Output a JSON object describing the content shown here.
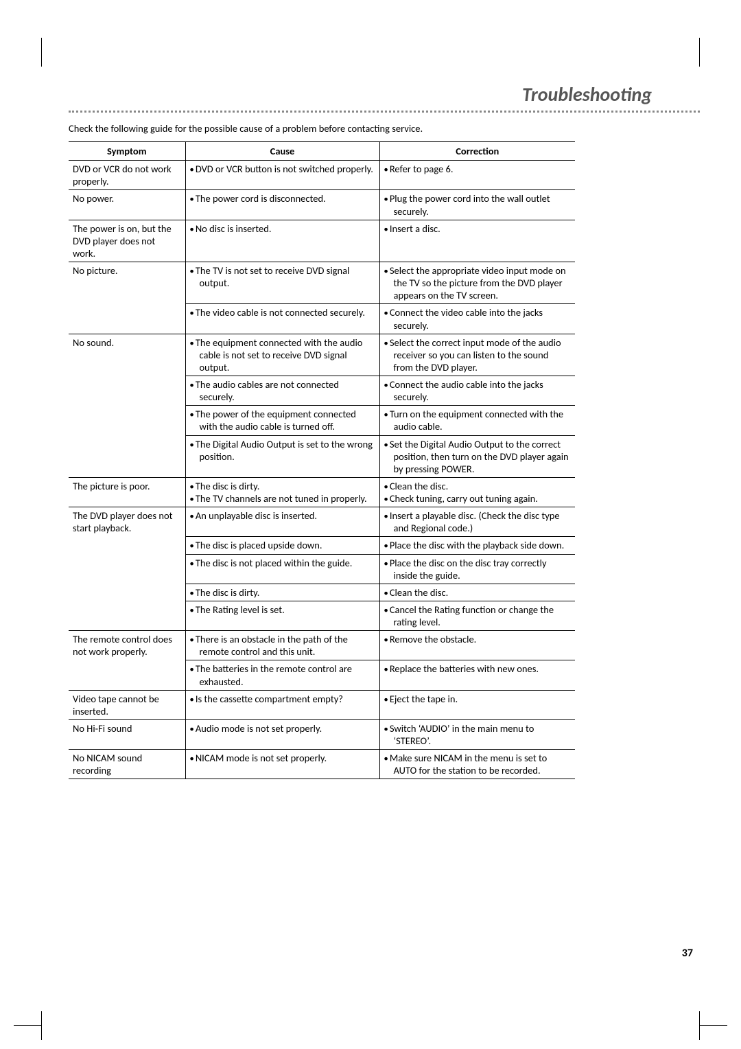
{
  "page": {
    "title": "Troubleshooting",
    "intro": "Check the following guide for the possible cause of a problem before contacting service.",
    "page_number": "37"
  },
  "table": {
    "headers": {
      "symptom": "Symptom",
      "cause": "Cause",
      "correction": "Correction"
    },
    "groups": [
      {
        "symptom": "DVD or VCR do not work properly.",
        "rows": [
          {
            "cause": "DVD or VCR button is not switched properly.",
            "correction": "Refer to page 6."
          }
        ]
      },
      {
        "symptom": "No power.",
        "rows": [
          {
            "cause": "The power cord is disconnected.",
            "correction": "Plug the power cord into the wall outlet securely."
          }
        ]
      },
      {
        "symptom": "The power is on, but the DVD player does not work.",
        "rows": [
          {
            "cause": "No disc is inserted.",
            "correction": "Insert a disc."
          }
        ]
      },
      {
        "symptom": "No picture.",
        "rows": [
          {
            "cause": "The TV is not set to receive DVD signal output.",
            "correction": "Select the appropriate video input mode on the TV so the picture from the DVD player appears on the TV screen."
          },
          {
            "cause": "The video cable is not connected securely.",
            "correction": "Connect the video cable into the jacks securely."
          }
        ]
      },
      {
        "symptom": "No sound.",
        "rows": [
          {
            "cause": "The equipment connected with the audio cable is not set to receive DVD signal output.",
            "correction": "Select the correct input mode of the audio receiver so you can listen to the sound from the DVD player."
          },
          {
            "cause": "The audio cables are not connected securely.",
            "correction": "Connect the audio cable into the jacks securely."
          },
          {
            "cause": "The power of the equipment connected with the audio cable is turned off.",
            "correction": "Turn on the equipment connected with the audio cable."
          },
          {
            "cause": "The Digital Audio Output is set to the wrong position.",
            "correction": "Set the Digital Audio Output to the correct position, then turn on the DVD player again by pressing POWER."
          }
        ]
      },
      {
        "symptom": "The picture is  poor.",
        "rows": [
          {
            "cause_list": [
              "The disc is dirty.",
              "The TV channels are not tuned in properly."
            ],
            "correction_list": [
              "Clean the disc.",
              "Check tuning, carry out tuning again."
            ]
          }
        ]
      },
      {
        "symptom": "The DVD player does not start playback.",
        "rows": [
          {
            "cause": "An unplayable disc is inserted.",
            "correction": "Insert a playable disc. (Check the disc type and Regional code.)"
          },
          {
            "cause": "The disc is placed upside down.",
            "correction": "Place the disc with the playback side down."
          },
          {
            "cause": "The disc is not placed within the guide.",
            "correction": "Place the disc on the disc tray correctly inside the guide."
          },
          {
            "cause": "The disc is dirty.",
            "correction": "Clean the disc."
          },
          {
            "cause": "The Rating level is set.",
            "correction": "Cancel the Rating function or change the rating  level."
          }
        ]
      },
      {
        "symptom": "The remote control does not work properly.",
        "rows": [
          {
            "cause": "There is an obstacle in the path of the remote control and this unit.",
            "correction": "Remove the obstacle."
          },
          {
            "cause": "The batteries in the remote control are exhausted.",
            "correction": "Replace the batteries with new ones."
          }
        ]
      },
      {
        "symptom": "Video tape cannot be inserted.",
        "rows": [
          {
            "cause": "Is the cassette compartment empty?",
            "correction": "Eject the tape in."
          }
        ]
      },
      {
        "symptom": "No Hi-Fi sound",
        "rows": [
          {
            "cause": "Audio mode is not set properly.",
            "correction": "Switch ‘AUDIO’ in the main menu to ‘STEREO’."
          }
        ]
      },
      {
        "symptom": "No NICAM sound recording",
        "rows": [
          {
            "cause": "NICAM mode is not set properly.",
            "correction": "Make sure NICAM in the menu is set to AUTO for the station to be recorded."
          }
        ]
      }
    ]
  }
}
